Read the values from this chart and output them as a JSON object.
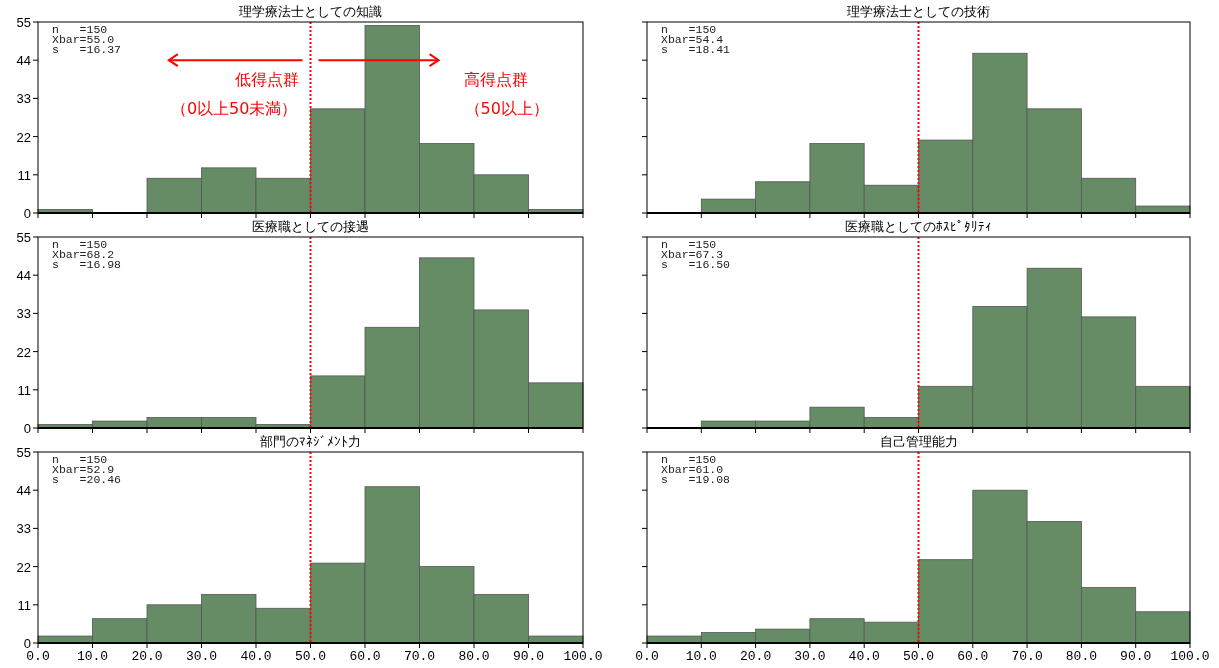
{
  "chart_data": [
    {
      "type": "histogram",
      "title": "理学療法士としての知識",
      "bins": [
        0,
        10,
        20,
        30,
        40,
        50,
        60,
        70,
        80,
        90,
        100
      ],
      "values": [
        1,
        0,
        10,
        13,
        10,
        30,
        54,
        20,
        11,
        1
      ],
      "color": "#658c64",
      "xlim": [
        0,
        100
      ],
      "ylim": [
        0,
        55
      ],
      "yticks": [
        0,
        11,
        22,
        33,
        44,
        55
      ],
      "xticks": [
        {
          "value": 0,
          "label": null
        },
        {
          "value": 10,
          "label": null
        },
        {
          "value": 20,
          "label": null
        },
        {
          "value": 30,
          "label": null
        },
        {
          "value": 40,
          "label": null
        },
        {
          "value": 50,
          "label": null
        },
        {
          "value": 60,
          "label": null
        },
        {
          "value": 70,
          "label": null
        },
        {
          "value": 80,
          "label": null
        },
        {
          "value": 90,
          "label": null
        },
        {
          "value": 100,
          "label": null
        }
      ],
      "tick_labels": "y",
      "ref_lines": [
        {
          "axis": "x",
          "value": 50,
          "color": "#ff0000",
          "line_style": "dotted"
        }
      ],
      "annotations": [
        "n   =150",
        "Xbar=55.0",
        "s   =16.37",
        "低得点群",
        "（0以上50未満）",
        "高得点群",
        "（50以上）"
      ]
    },
    {
      "type": "histogram",
      "title": "理学療法士としての技術",
      "bins": [
        0,
        10,
        20,
        30,
        40,
        50,
        60,
        70,
        80,
        90,
        100
      ],
      "values": [
        0,
        4,
        9,
        20,
        8,
        21,
        46,
        30,
        10,
        2
      ],
      "color": "#658c64",
      "xlim": [
        0,
        100
      ],
      "ylim": [
        0,
        55
      ],
      "yticks": [
        0,
        11,
        22,
        33,
        44,
        55
      ],
      "xticks": [
        {
          "value": 0,
          "label": null
        },
        {
          "value": 10,
          "label": null
        },
        {
          "value": 20,
          "label": null
        },
        {
          "value": 30,
          "label": null
        },
        {
          "value": 40,
          "label": null
        },
        {
          "value": 50,
          "label": null
        },
        {
          "value": 60,
          "label": null
        },
        {
          "value": 70,
          "label": null
        },
        {
          "value": 80,
          "label": null
        },
        {
          "value": 90,
          "label": null
        },
        {
          "value": 100,
          "label": null
        }
      ],
      "tick_labels": false,
      "ref_lines": [
        {
          "axis": "x",
          "value": 50,
          "color": "#ff0000",
          "line_style": "dotted"
        }
      ],
      "annotations": [
        "n   =150",
        "Xbar=54.4",
        "s   =18.41"
      ]
    },
    {
      "type": "histogram",
      "title": "医療職としての接遇",
      "bins": [
        0,
        10,
        20,
        30,
        40,
        50,
        60,
        70,
        80,
        90,
        100
      ],
      "values": [
        1,
        2,
        3,
        3,
        1,
        15,
        29,
        49,
        34,
        13
      ],
      "color": "#658c64",
      "xlim": [
        0,
        100
      ],
      "ylim": [
        0,
        55
      ],
      "yticks": [
        0,
        11,
        22,
        33,
        44,
        55
      ],
      "xticks": [
        {
          "value": 0,
          "label": null
        },
        {
          "value": 10,
          "label": null
        },
        {
          "value": 20,
          "label": null
        },
        {
          "value": 30,
          "label": null
        },
        {
          "value": 40,
          "label": null
        },
        {
          "value": 50,
          "label": null
        },
        {
          "value": 60,
          "label": null
        },
        {
          "value": 70,
          "label": null
        },
        {
          "value": 80,
          "label": null
        },
        {
          "value": 90,
          "label": null
        },
        {
          "value": 100,
          "label": null
        }
      ],
      "tick_labels": "y",
      "ref_lines": [
        {
          "axis": "x",
          "value": 50,
          "color": "#ff0000",
          "line_style": "dotted"
        }
      ],
      "annotations": [
        "n   =150",
        "Xbar=68.2",
        "s   =16.98"
      ]
    },
    {
      "type": "histogram",
      "title": "医療職としてのﾎｽﾋﾟﾀﾘﾃｨ",
      "bins": [
        0,
        10,
        20,
        30,
        40,
        50,
        60,
        70,
        80,
        90,
        100
      ],
      "values": [
        0,
        2,
        2,
        6,
        3,
        12,
        35,
        46,
        32,
        12
      ],
      "color": "#658c64",
      "xlim": [
        0,
        100
      ],
      "ylim": [
        0,
        55
      ],
      "yticks": [
        0,
        11,
        22,
        33,
        44,
        55
      ],
      "xticks": [
        {
          "value": 0,
          "label": null
        },
        {
          "value": 10,
          "label": null
        },
        {
          "value": 20,
          "label": null
        },
        {
          "value": 30,
          "label": null
        },
        {
          "value": 40,
          "label": null
        },
        {
          "value": 50,
          "label": null
        },
        {
          "value": 60,
          "label": null
        },
        {
          "value": 70,
          "label": null
        },
        {
          "value": 80,
          "label": null
        },
        {
          "value": 90,
          "label": null
        },
        {
          "value": 100,
          "label": null
        }
      ],
      "tick_labels": false,
      "ref_lines": [
        {
          "axis": "x",
          "value": 50,
          "color": "#ff0000",
          "line_style": "dotted"
        }
      ],
      "annotations": [
        "n   =150",
        "Xbar=67.3",
        "s   =16.50"
      ]
    },
    {
      "type": "histogram",
      "title": "部門のﾏﾈｼﾞﾒﾝﾄ力",
      "bins": [
        0,
        10,
        20,
        30,
        40,
        50,
        60,
        70,
        80,
        90,
        100
      ],
      "values": [
        2,
        7,
        11,
        14,
        10,
        23,
        45,
        22,
        14,
        2
      ],
      "color": "#658c64",
      "xlim": [
        0,
        100
      ],
      "ylim": [
        0,
        55
      ],
      "yticks": [
        0,
        11,
        22,
        33,
        44,
        55
      ],
      "xticks": [
        {
          "value": 0,
          "label": "0.0"
        },
        {
          "value": 10,
          "label": "10.0"
        },
        {
          "value": 20,
          "label": "20.0"
        },
        {
          "value": 30,
          "label": "30.0"
        },
        {
          "value": 40,
          "label": "40.0"
        },
        {
          "value": 50,
          "label": "50.0"
        },
        {
          "value": 60,
          "label": "60.0"
        },
        {
          "value": 70,
          "label": "70.0"
        },
        {
          "value": 80,
          "label": "80.0"
        },
        {
          "value": 90,
          "label": "90.0"
        },
        {
          "value": 100,
          "label": "100.0"
        }
      ],
      "ref_lines": [
        {
          "axis": "x",
          "value": 50,
          "color": "#ff0000",
          "line_style": "dotted"
        }
      ],
      "annotations": [
        "n   =150",
        "Xbar=52.9",
        "s   =20.46"
      ]
    },
    {
      "type": "histogram",
      "title": "自己管理能力",
      "bins": [
        0,
        10,
        20,
        30,
        40,
        50,
        60,
        70,
        80,
        90,
        100
      ],
      "values": [
        2,
        3,
        4,
        7,
        6,
        24,
        44,
        35,
        16,
        9
      ],
      "color": "#658c64",
      "xlim": [
        0,
        100
      ],
      "ylim": [
        0,
        55
      ],
      "yticks": [
        0,
        11,
        22,
        33,
        44,
        55
      ],
      "xticks": [
        {
          "value": 0,
          "label": "0.0"
        },
        {
          "value": 10,
          "label": "10.0"
        },
        {
          "value": 20,
          "label": "20.0"
        },
        {
          "value": 30,
          "label": "30.0"
        },
        {
          "value": 40,
          "label": "40.0"
        },
        {
          "value": 50,
          "label": "50.0"
        },
        {
          "value": 60,
          "label": "60.0"
        },
        {
          "value": 70,
          "label": "70.0"
        },
        {
          "value": 80,
          "label": "80.0"
        },
        {
          "value": 90,
          "label": "90.0"
        },
        {
          "value": 100,
          "label": "100.0"
        }
      ],
      "tick_labels": "x",
      "ref_lines": [
        {
          "axis": "x",
          "value": 50,
          "color": "#ff0000",
          "line_style": "dotted"
        }
      ],
      "annotations": [
        "n   =150",
        "Xbar=61.0",
        "s   =19.08"
      ]
    }
  ]
}
